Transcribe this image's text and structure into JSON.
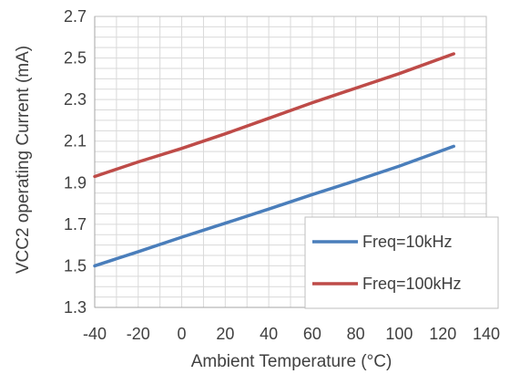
{
  "chart_data": {
    "type": "line",
    "title": "",
    "xlabel": "Ambient Temperature (°C)",
    "ylabel": "VCC2 operating Current (mA)",
    "xlim": [
      -40,
      140
    ],
    "ylim": [
      1.3,
      2.7
    ],
    "x_ticks": [
      "-40",
      "-20",
      "0",
      "20",
      "40",
      "60",
      "80",
      "100",
      "120",
      "140"
    ],
    "y_ticks": [
      "1.3",
      "1.5",
      "1.7",
      "1.9",
      "2.1",
      "2.3",
      "2.5",
      "2.7"
    ],
    "x_minor_step": 10,
    "y_minor_step": 0.05,
    "grid": true,
    "legend_position": "bottom-right",
    "series": [
      {
        "name": "Freq=10kHz",
        "color": "#4a7ebb",
        "x": [
          -40,
          -20,
          0,
          20,
          40,
          60,
          80,
          100,
          125
        ],
        "y": [
          1.5,
          1.568,
          1.638,
          1.705,
          1.773,
          1.843,
          1.91,
          1.98,
          2.075
        ]
      },
      {
        "name": "Freq=100kHz",
        "color": "#be4b48",
        "x": [
          -40,
          -20,
          0,
          20,
          40,
          60,
          80,
          100,
          125
        ],
        "y": [
          1.93,
          2.0,
          2.065,
          2.135,
          2.21,
          2.285,
          2.355,
          2.425,
          2.52
        ]
      }
    ]
  }
}
